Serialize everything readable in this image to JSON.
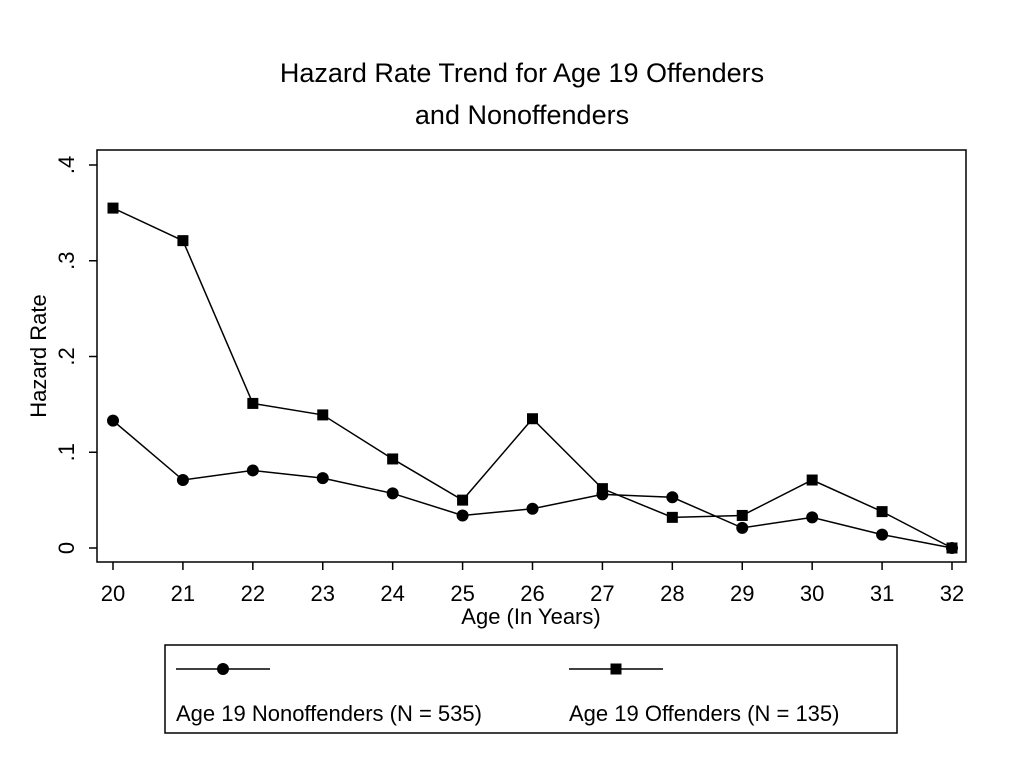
{
  "chart_data": {
    "type": "line",
    "title": [
      "Hazard Rate Trend for Age 19 Offenders",
      "and Nonoffenders"
    ],
    "xlabel": "Age (In Years)",
    "ylabel": "Hazard Rate",
    "x": [
      20,
      21,
      22,
      23,
      24,
      25,
      26,
      27,
      28,
      29,
      30,
      31,
      32
    ],
    "x_ticks": [
      "20",
      "21",
      "22",
      "23",
      "24",
      "25",
      "26",
      "27",
      "28",
      "29",
      "30",
      "31",
      "32"
    ],
    "y_ticks": [
      "0",
      ".1",
      ".2",
      ".3",
      ".4"
    ],
    "y_tick_values": [
      0,
      0.1,
      0.2,
      0.3,
      0.4
    ],
    "xlim": [
      20,
      32
    ],
    "ylim": [
      0,
      0.4
    ],
    "grid": false,
    "legend_position": "bottom",
    "series": [
      {
        "name": "Age 19 Nonoffenders (N = 535)",
        "marker": "circle",
        "color": "#000000",
        "values": [
          0.133,
          0.071,
          0.081,
          0.073,
          0.057,
          0.034,
          0.041,
          0.056,
          0.053,
          0.021,
          0.032,
          0.014,
          0.0
        ]
      },
      {
        "name": "Age 19 Offenders (N = 135)",
        "marker": "square",
        "color": "#000000",
        "values": [
          0.355,
          0.321,
          0.151,
          0.139,
          0.093,
          0.05,
          0.135,
          0.062,
          0.032,
          0.034,
          0.071,
          0.038,
          0.0
        ]
      }
    ]
  }
}
